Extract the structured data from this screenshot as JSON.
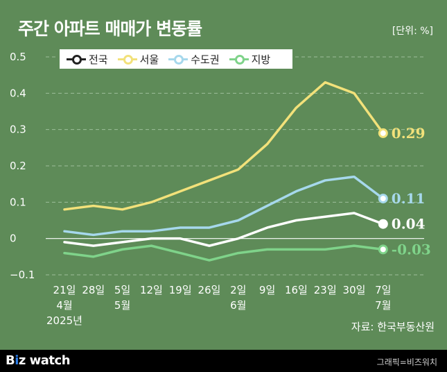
{
  "title": "주간 아파트 매매가 변동률",
  "unit": "[단위: %]",
  "source": "자료: 한국부동산원",
  "footer": {
    "logo": {
      "b": "B",
      "i": "i",
      "rest": "z watch"
    },
    "credit": "그래픽=비즈워치"
  },
  "chart_data": {
    "type": "line",
    "categories": [
      [
        "21일",
        "4월",
        "2025년"
      ],
      [
        "28일"
      ],
      [
        "5일",
        "5월"
      ],
      [
        "12일"
      ],
      [
        "19일"
      ],
      [
        "26일"
      ],
      [
        "2일",
        "6월"
      ],
      [
        "9일"
      ],
      [
        "16일"
      ],
      [
        "23일"
      ],
      [
        "30일"
      ],
      [
        "7일",
        "7월"
      ]
    ],
    "ylim": [
      -0.1,
      0.5
    ],
    "yticks": [
      -0.1,
      0,
      0.1,
      0.2,
      0.3,
      0.4,
      0.5
    ],
    "ytick_labels": [
      "−0.1",
      "0",
      "0.1",
      "0.2",
      "0.3",
      "0.4",
      "0.5"
    ],
    "grid": "horizontal-dashed",
    "legend": "top-left",
    "series": [
      {
        "name": "전국",
        "color": "#ffffff",
        "values": [
          -0.01,
          -0.02,
          -0.01,
          0.0,
          0.0,
          -0.02,
          0.0,
          0.03,
          0.05,
          0.06,
          0.07,
          0.04
        ],
        "end_label": "0.04"
      },
      {
        "name": "서울",
        "color": "#f2e17a",
        "values": [
          0.08,
          0.09,
          0.08,
          0.1,
          0.13,
          0.16,
          0.19,
          0.26,
          0.36,
          0.43,
          0.4,
          0.29
        ],
        "end_label": "0.29"
      },
      {
        "name": "수도권",
        "color": "#a6d8ec",
        "values": [
          0.02,
          0.01,
          0.02,
          0.02,
          0.03,
          0.03,
          0.05,
          0.09,
          0.13,
          0.16,
          0.17,
          0.11
        ],
        "end_label": "0.11"
      },
      {
        "name": "지방",
        "color": "#7fd38a",
        "values": [
          -0.04,
          -0.05,
          -0.03,
          -0.02,
          -0.04,
          -0.06,
          -0.04,
          -0.03,
          -0.03,
          -0.03,
          -0.02,
          -0.03
        ],
        "end_label": "-0.03"
      }
    ]
  }
}
